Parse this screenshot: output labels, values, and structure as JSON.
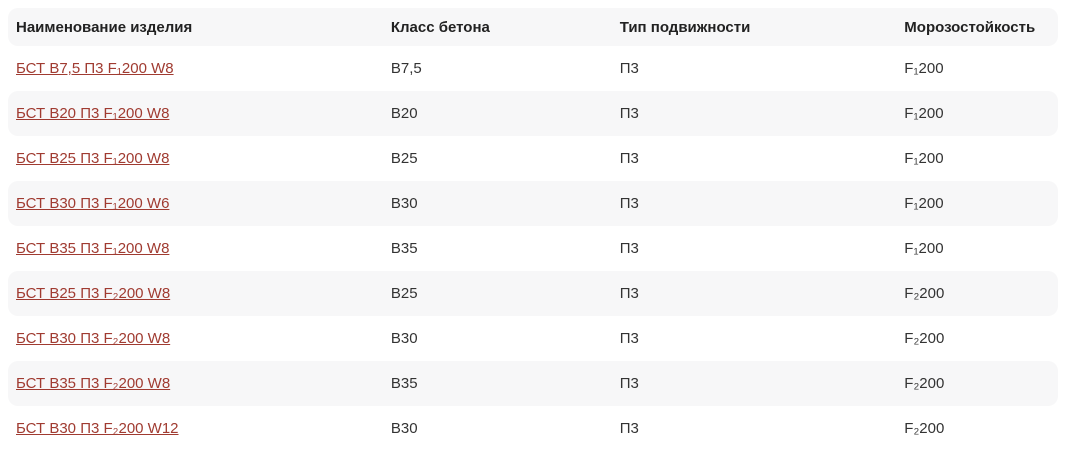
{
  "colors": {
    "link": "#a03b31",
    "stripe": "#f7f7f8",
    "header_text": "#222222",
    "body_text": "#333333"
  },
  "table": {
    "columns": [
      "Наименование изделия",
      "Класс бетона",
      "Тип подвижности",
      "Морозостойкость"
    ],
    "rows": [
      {
        "name": "БСТ В7,5 П3 F₁200 W8",
        "concrete_class": "В7,5",
        "mobility": "П3",
        "frost": "F₁200"
      },
      {
        "name": "БСТ В20 П3 F₁200 W8",
        "concrete_class": "В20",
        "mobility": "П3",
        "frost": "F₁200"
      },
      {
        "name": "БСТ В25 П3 F₁200 W8",
        "concrete_class": "В25",
        "mobility": "П3",
        "frost": "F₁200"
      },
      {
        "name": "БСТ В30 П3 F₁200 W6",
        "concrete_class": "В30",
        "mobility": "П3",
        "frost": "F₁200"
      },
      {
        "name": "БСТ В35 П3 F₁200 W8",
        "concrete_class": "В35",
        "mobility": "П3",
        "frost": "F₁200"
      },
      {
        "name": "БСТ В25 П3 F₂200 W8",
        "concrete_class": "В25",
        "mobility": "П3",
        "frost": "F₂200"
      },
      {
        "name": "БСТ В30 П3 F₂200 W8",
        "concrete_class": "В30",
        "mobility": "П3",
        "frost": "F₂200"
      },
      {
        "name": "БСТ В35 П3 F₂200 W8",
        "concrete_class": "В35",
        "mobility": "П3",
        "frost": "F₂200"
      },
      {
        "name": "БСТ В30 П3 F₂200 W12",
        "concrete_class": "В30",
        "mobility": "П3",
        "frost": "F₂200"
      }
    ]
  }
}
